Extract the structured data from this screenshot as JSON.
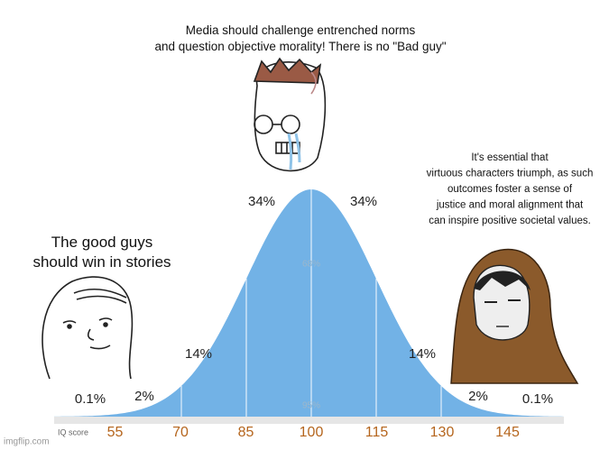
{
  "captions": {
    "top": [
      "Media should challenge entrenched  norms",
      "and question objective morality! There is no \"Bad guy\""
    ],
    "left": [
      "The good guys",
      "should win in stories"
    ],
    "right": [
      "It's essential that",
      "virtuous characters triumph, as such",
      "outcomes foster a sense of",
      "justice and moral alignment that",
      "can inspire positive societal values."
    ]
  },
  "distribution": {
    "percent_labels": [
      "0.1%",
      "2%",
      "14%",
      "34%",
      "34%",
      "14%",
      "2%",
      "0.1%"
    ],
    "inner_labels": [
      "68%",
      "95%"
    ],
    "axis_label": "IQ score",
    "scores": [
      "55",
      "70",
      "85",
      "100",
      "115",
      "130",
      "145"
    ]
  },
  "watermark": "imgflip.com"
}
